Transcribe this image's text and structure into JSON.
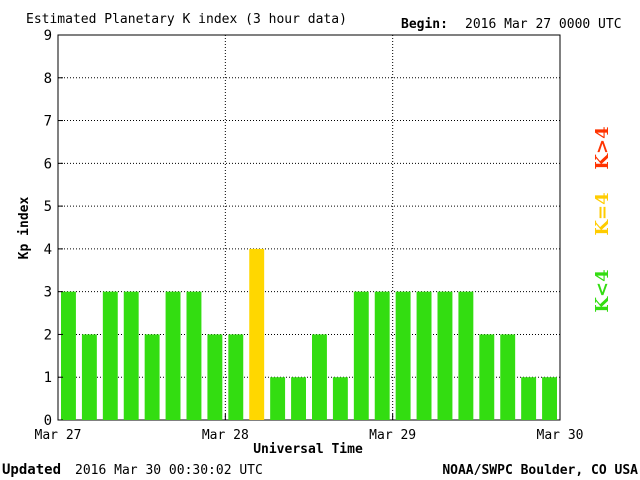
{
  "header": {
    "title": "Estimated Planetary K index (3 hour data)",
    "begin_label": "Begin:",
    "begin_value": "2016 Mar 27 0000 UTC"
  },
  "footer": {
    "updated_label": "Updated",
    "updated_value": "2016 Mar 30 00:30:02 UTC",
    "credit": "NOAA/SWPC Boulder, CO USA"
  },
  "legend": [
    {
      "label": "K>4",
      "color": "#ff3300"
    },
    {
      "label": "K=4",
      "color": "#ffcc00"
    },
    {
      "label": "K<4",
      "color": "#33dd11"
    }
  ],
  "chart_data": {
    "type": "bar",
    "title": "Estimated Planetary K index (3 hour data)",
    "xlabel": "Universal Time",
    "ylabel": "Kp index",
    "ylim": [
      0,
      9
    ],
    "yticks": [
      "0",
      "1",
      "2",
      "3",
      "4",
      "5",
      "6",
      "7",
      "8",
      "9"
    ],
    "xticks": [
      "Mar 27",
      "Mar 28",
      "Mar 29",
      "Mar 30"
    ],
    "grid": true,
    "interval_hours": 3,
    "values": [
      3,
      2,
      3,
      3,
      2,
      3,
      3,
      2,
      2,
      4,
      1,
      1,
      2,
      1,
      3,
      3,
      3,
      3,
      3,
      3,
      2,
      2,
      1,
      1
    ],
    "colors": {
      "below": "#33dd11",
      "equal": "#ffd700",
      "above": "#ff3300"
    }
  }
}
